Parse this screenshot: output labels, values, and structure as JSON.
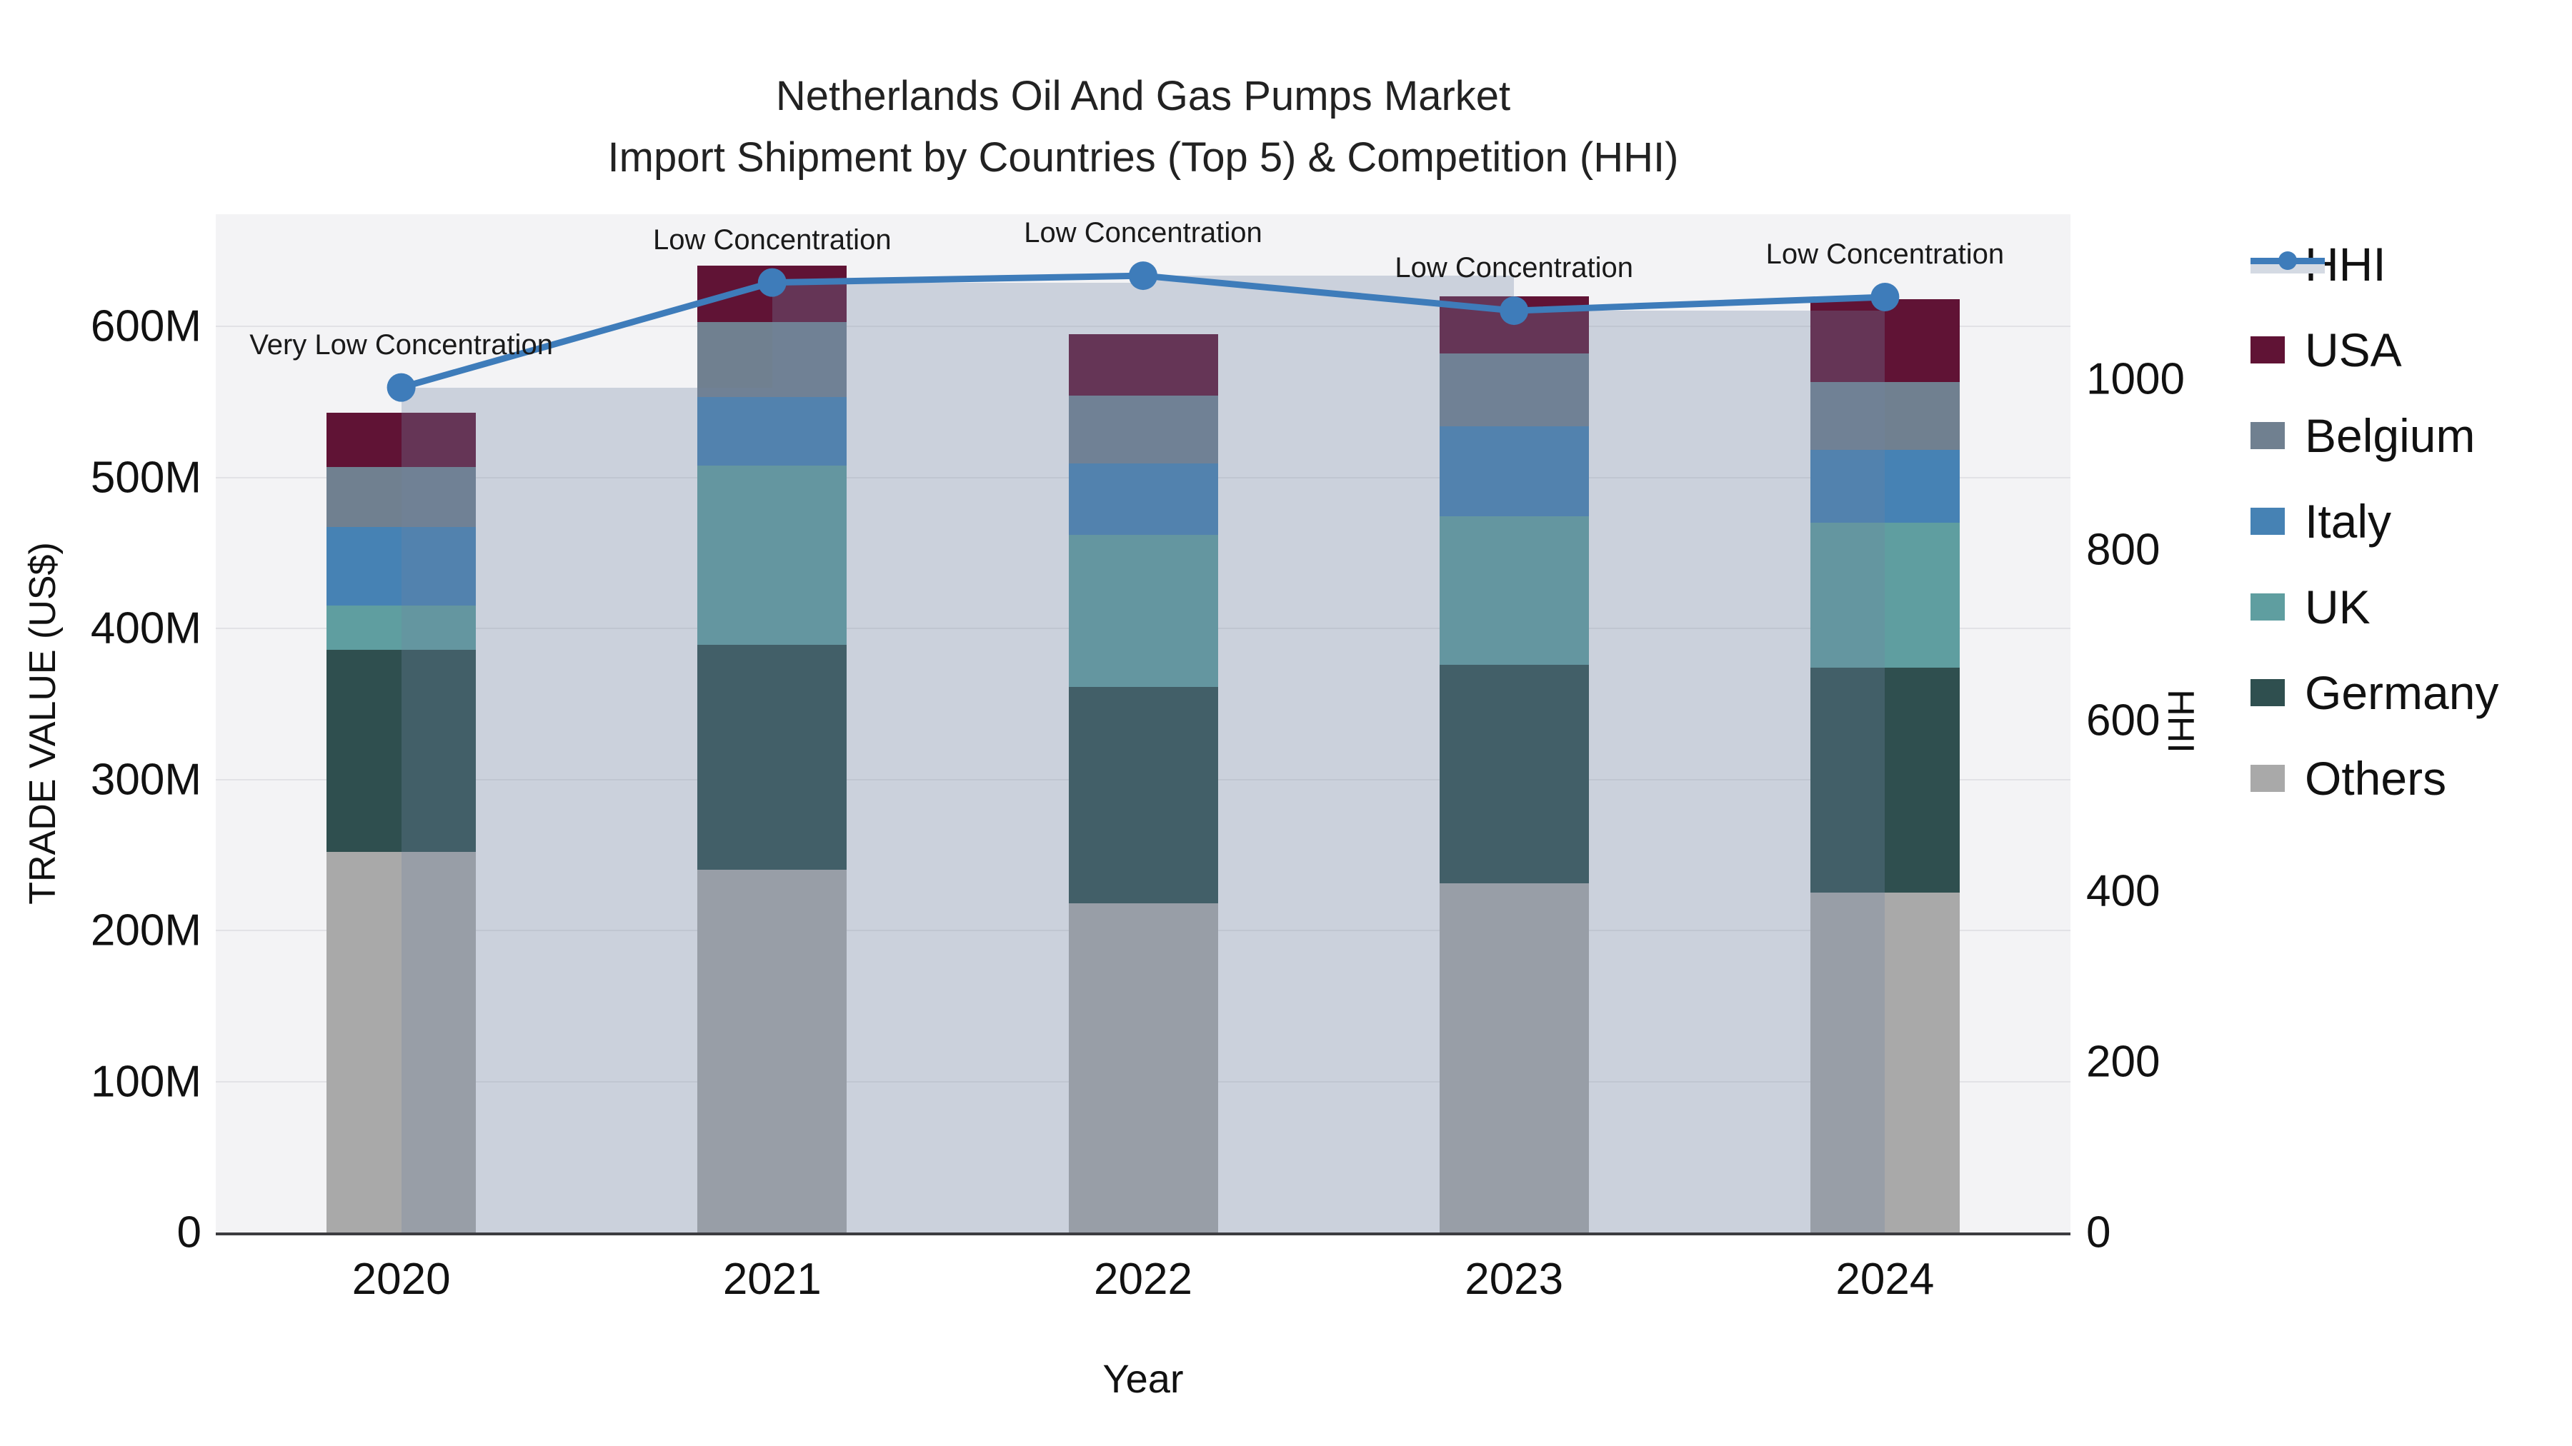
{
  "title": {
    "line1": "Netherlands Oil And Gas Pumps Market",
    "line2": "Import Shipment by Countries (Top 5) & Competition (HHI)"
  },
  "axes": {
    "y_left": {
      "title": "TRADE VALUE (US$)",
      "ticks": [
        "0",
        "100M",
        "200M",
        "300M",
        "400M",
        "500M",
        "600M"
      ],
      "range": [
        0,
        600
      ]
    },
    "y_right": {
      "title": "HHI",
      "ticks": [
        "0",
        "200",
        "400",
        "600",
        "800",
        "1000"
      ],
      "range": [
        0,
        1000
      ]
    },
    "x": {
      "title": "Year",
      "categories": [
        "2020",
        "2021",
        "2022",
        "2023",
        "2024"
      ]
    }
  },
  "legend": [
    {
      "label": "HHI",
      "type": "line",
      "color": "#3e7cba"
    },
    {
      "label": "USA",
      "type": "square",
      "color": "#601335"
    },
    {
      "label": "Belgium",
      "type": "square",
      "color": "#708090"
    },
    {
      "label": "Italy",
      "type": "square",
      "color": "#4682b4"
    },
    {
      "label": "UK",
      "type": "square",
      "color": "#5f9ea0"
    },
    {
      "label": "Germany",
      "type": "square",
      "color": "#2f4f4f"
    },
    {
      "label": "Others",
      "type": "square",
      "color": "#a9a9a9"
    }
  ],
  "chart_data": {
    "type": "bar+line",
    "title": "Netherlands Oil And Gas Pumps Market",
    "subtitle": "Import Shipment by Countries (Top 5) & Competition (HHI)",
    "xlabel": "Year",
    "ylabel_left": "TRADE VALUE (US$)",
    "ylabel_right": "HHI",
    "categories": [
      "2020",
      "2021",
      "2022",
      "2023",
      "2024"
    ],
    "value_unit": "Million US$",
    "ylim_left": [
      0,
      600
    ],
    "ylim_right": [
      0,
      1000
    ],
    "grid": true,
    "legend_position": "right",
    "stack_order_bottom_to_top": [
      "Others",
      "Germany",
      "UK",
      "Italy",
      "Belgium",
      "USA"
    ],
    "series": [
      {
        "name": "USA",
        "color": "#601335",
        "values": [
          36,
          37,
          41,
          38,
          55
        ]
      },
      {
        "name": "Belgium",
        "color": "#708090",
        "values": [
          40,
          50,
          45,
          48,
          45
        ]
      },
      {
        "name": "Italy",
        "color": "#4682b4",
        "values": [
          52,
          45,
          47,
          60,
          48
        ]
      },
      {
        "name": "UK",
        "color": "#5f9ea0",
        "values": [
          29,
          119,
          101,
          98,
          96
        ]
      },
      {
        "name": "Germany",
        "color": "#2f4f4f",
        "values": [
          134,
          149,
          143,
          145,
          149
        ]
      },
      {
        "name": "Others",
        "color": "#a9a9a9",
        "values": [
          252,
          240,
          218,
          231,
          225
        ]
      }
    ],
    "totals_m_usd": [
      543,
      640,
      595,
      620,
      618
    ],
    "hhi": {
      "name": "HHI",
      "axis": "right",
      "line_color": "#3e7cba",
      "bar_color": "#7084a1",
      "bar_opacity": 0.3,
      "values": [
        990,
        1113,
        1121,
        1080,
        1096
      ]
    },
    "annotations": [
      {
        "category": "2020",
        "text": "Very Low Concentration"
      },
      {
        "category": "2021",
        "text": "Low Concentration"
      },
      {
        "category": "2022",
        "text": "Low Concentration"
      },
      {
        "category": "2023",
        "text": "Low Concentration"
      },
      {
        "category": "2024",
        "text": "Low Concentration"
      }
    ]
  }
}
